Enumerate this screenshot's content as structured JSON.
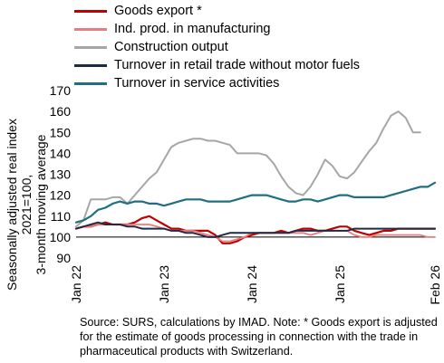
{
  "chart_data": {
    "type": "line",
    "ylabel": "Seasonally adjusted real index 2021=100,\n3-month moving average",
    "ylim": [
      90,
      170
    ],
    "yticks": [
      90,
      100,
      110,
      120,
      130,
      140,
      150,
      160,
      170
    ],
    "reference_line": 100,
    "xtick_labels": [
      "Jan 22",
      "Jan 23",
      "Jan 24",
      "Jan 25",
      "Feb 26"
    ],
    "xtick_indices": [
      0,
      12,
      24,
      36,
      49
    ],
    "x_start": "Jan 22",
    "x_end": "Feb 26",
    "legend_position": "top",
    "series": [
      {
        "name": "Goods export *",
        "color": "#c00000",
        "width": 2.2,
        "values": [
          104,
          105,
          105,
          106,
          107,
          106,
          106,
          106,
          107,
          109,
          110,
          108,
          106,
          104,
          104,
          103,
          103,
          103,
          103,
          101,
          97,
          97,
          98,
          100,
          101,
          102,
          102,
          102,
          103,
          102,
          103,
          104,
          104,
          103,
          103,
          104,
          105,
          105,
          103,
          102,
          101,
          102,
          103,
          103,
          104,
          104,
          104,
          104,
          104,
          104
        ]
      },
      {
        "name": "Ind. prod. in manufacturing",
        "color": "#ec7c7c",
        "width": 1.8,
        "values": [
          104,
          105,
          105,
          106,
          106,
          106,
          106,
          106,
          106,
          106,
          106,
          105,
          104,
          103,
          103,
          103,
          103,
          102,
          101,
          100,
          98,
          98,
          99,
          100,
          102,
          102,
          102,
          102,
          102,
          102,
          102,
          102,
          101,
          102,
          103,
          103,
          103,
          103,
          101,
          100,
          100,
          101,
          101,
          101,
          101,
          101,
          101,
          101,
          100,
          100
        ]
      },
      {
        "name": "Construction output",
        "color": "#a6a6a6",
        "width": 2.0,
        "values": [
          105,
          108,
          118,
          118,
          118,
          119,
          119,
          116,
          120,
          124,
          128,
          131,
          137,
          143,
          145,
          146,
          147,
          147,
          146,
          146,
          145,
          144,
          140,
          140,
          140,
          140,
          139,
          135,
          129,
          124,
          121,
          120,
          124,
          130,
          137,
          134,
          129,
          128,
          131,
          136,
          141,
          145,
          152,
          158,
          160,
          157,
          150,
          150
        ]
      },
      {
        "name": "Turnover in retail trade without motor fuels",
        "color": "#1f2a44",
        "width": 2.0,
        "values": [
          104,
          105,
          106,
          107,
          106,
          106,
          106,
          105,
          105,
          104,
          104,
          104,
          104,
          103,
          103,
          102,
          102,
          101,
          100,
          100,
          101,
          102,
          102,
          102,
          102,
          102,
          102,
          102,
          102,
          102,
          103,
          103,
          103,
          103,
          103,
          103,
          103,
          103,
          104,
          104,
          104,
          104,
          104,
          104,
          104,
          104,
          104,
          104,
          104,
          104
        ]
      },
      {
        "name": "Turnover in service activities",
        "color": "#1f6e82",
        "width": 2.2,
        "values": [
          107,
          108,
          110,
          113,
          114,
          116,
          117,
          116,
          117,
          117,
          116,
          116,
          115,
          116,
          117,
          118,
          118,
          118,
          117,
          117,
          117,
          117,
          118,
          119,
          120,
          120,
          120,
          119,
          118,
          117,
          117,
          118,
          118,
          117,
          118,
          119,
          120,
          120,
          119,
          119,
          119,
          119,
          119,
          120,
          121,
          122,
          123,
          124,
          124,
          126
        ]
      }
    ]
  },
  "source_note": "Source: SURS, calculations by IMAD. Note: * Goods export is adjusted for the estimate of goods processing in connection with the trade in pharmaceutical products with Switzerland."
}
